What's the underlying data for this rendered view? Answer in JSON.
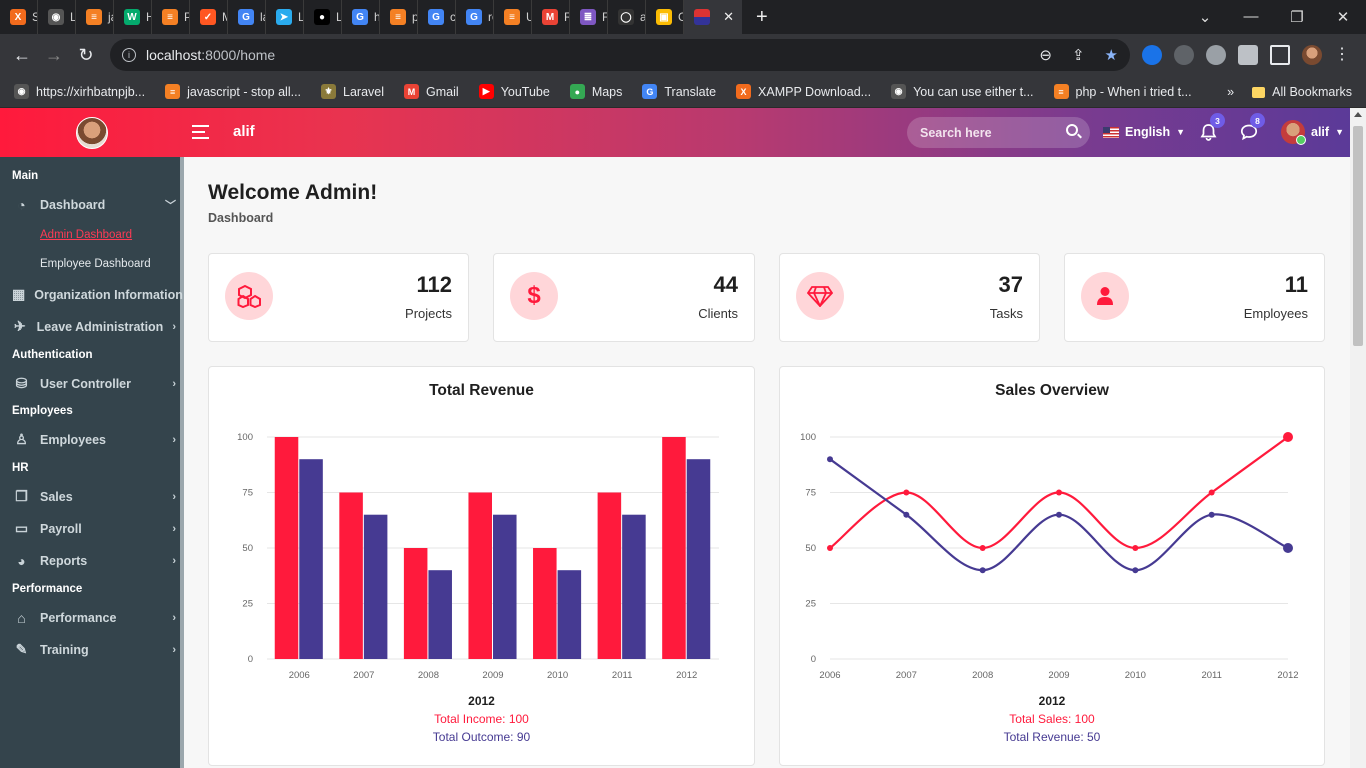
{
  "browser": {
    "tabs": [
      {
        "label": "Sial",
        "color": "#f26b1d",
        "glyph": "X"
      },
      {
        "label": "Log",
        "color": "#555",
        "glyph": "◉"
      },
      {
        "label": "java",
        "color": "#f48024",
        "glyph": "≡"
      },
      {
        "label": "HTI",
        "color": "#04aa6d",
        "glyph": "W"
      },
      {
        "label": "Pos",
        "color": "#f48024",
        "glyph": "≡"
      },
      {
        "label": "Mo",
        "color": "#ff5722",
        "glyph": "✓"
      },
      {
        "label": "lara",
        "color": "#4285f4",
        "glyph": "G"
      },
      {
        "label": "Log",
        "color": "#2aabee",
        "glyph": "➤"
      },
      {
        "label": "Lar",
        "color": "#000",
        "glyph": "●"
      },
      {
        "label": "hov",
        "color": "#4285f4",
        "glyph": "G"
      },
      {
        "label": "php",
        "color": "#f48024",
        "glyph": "≡"
      },
      {
        "label": "car",
        "color": "#4285f4",
        "glyph": "G"
      },
      {
        "label": "rou",
        "color": "#4285f4",
        "glyph": "G"
      },
      {
        "label": "Usi",
        "color": "#f48024",
        "glyph": "≡"
      },
      {
        "label": "Res",
        "color": "#ea4335",
        "glyph": "M"
      },
      {
        "label": "FUI",
        "color": "#7e57c2",
        "glyph": "≣"
      },
      {
        "label": "alif",
        "color": "#333",
        "glyph": "◯"
      },
      {
        "label": "Go",
        "color": "#fbbc04",
        "glyph": "▣"
      }
    ],
    "active_tab_glyph": "✕",
    "url_host": "localhost",
    "url_rest": ":8000/home",
    "bookmarks": [
      {
        "label": "https://xirhbatnpjb...",
        "color": "#555",
        "glyph": "◉"
      },
      {
        "label": "javascript - stop all...",
        "color": "#f48024",
        "glyph": "≡"
      },
      {
        "label": "Laravel",
        "color": "#8a7a3a",
        "glyph": "⚜"
      },
      {
        "label": "Gmail",
        "color": "#ea4335",
        "glyph": "M"
      },
      {
        "label": "YouTube",
        "color": "#ff0000",
        "glyph": "▶"
      },
      {
        "label": "Maps",
        "color": "#34a853",
        "glyph": "●"
      },
      {
        "label": "Translate",
        "color": "#4285f4",
        "glyph": "G"
      },
      {
        "label": "XAMPP Download...",
        "color": "#f26b1d",
        "glyph": "X"
      },
      {
        "label": "You can use either t...",
        "color": "#555",
        "glyph": "◉"
      },
      {
        "label": "php - When i tried t...",
        "color": "#f48024",
        "glyph": "≡"
      }
    ],
    "all_bookmarks": "All Bookmarks",
    "more_bookmarks": "»"
  },
  "header": {
    "brand": "alif",
    "search_placeholder": "Search here",
    "language": "English",
    "notifications_count": "3",
    "messages_count": "8",
    "user_name": "alif"
  },
  "sidebar": {
    "sections": {
      "main": "Main",
      "authentication": "Authentication",
      "employees": "Employees",
      "hr": "HR",
      "performance": "Performance"
    },
    "dashboard": "Dashboard",
    "admin_dashboard": "Admin Dashboard",
    "employee_dashboard": "Employee Dashboard",
    "organization": "Organization Information",
    "leave": "Leave Administration",
    "user_controller": "User Controller",
    "employees": "Employees",
    "sales": "Sales",
    "payroll": "Payroll",
    "reports": "Reports",
    "performance": "Performance",
    "training": "Training"
  },
  "page": {
    "title": "Welcome Admin!",
    "breadcrumb": "Dashboard"
  },
  "stats": [
    {
      "value": "112",
      "label": "Projects",
      "icon": "cubes-icon"
    },
    {
      "value": "44",
      "label": "Clients",
      "icon": "dollar-icon"
    },
    {
      "value": "37",
      "label": "Tasks",
      "icon": "diamond-icon"
    },
    {
      "value": "11",
      "label": "Employees",
      "icon": "user-icon"
    }
  ],
  "colors": {
    "red": "#ff1a3c",
    "purple": "#463a92"
  },
  "chart_data": [
    {
      "type": "bar",
      "title": "Total Revenue",
      "categories": [
        "2006",
        "2007",
        "2008",
        "2009",
        "2010",
        "2011",
        "2012"
      ],
      "series": [
        {
          "values": [
            100,
            75,
            50,
            75,
            50,
            75,
            100
          ],
          "color": "#ff1a3c"
        },
        {
          "values": [
            90,
            65,
            40,
            65,
            40,
            65,
            90
          ],
          "color": "#463a92"
        }
      ],
      "ylim": [
        0,
        100
      ],
      "yticks": [
        "0",
        "25",
        "50",
        "75",
        "100"
      ],
      "grid": true,
      "legend": {
        "heading": "2012",
        "lines": [
          "Total Income: 100",
          "Total Outcome: 90"
        ]
      }
    },
    {
      "type": "line",
      "title": "Sales Overview",
      "categories": [
        "2006",
        "2007",
        "2008",
        "2009",
        "2010",
        "2011",
        "2012"
      ],
      "series": [
        {
          "values": [
            50,
            75,
            50,
            75,
            50,
            75,
            100
          ],
          "color": "#ff1a3c"
        },
        {
          "values": [
            90,
            65,
            40,
            65,
            40,
            65,
            50
          ],
          "color": "#463a92"
        }
      ],
      "ylim": [
        0,
        100
      ],
      "yticks": [
        "0",
        "25",
        "50",
        "75",
        "100"
      ],
      "grid": true,
      "legend": {
        "heading": "2012",
        "lines": [
          "Total Sales: 100",
          "Total Revenue: 50"
        ]
      }
    }
  ]
}
